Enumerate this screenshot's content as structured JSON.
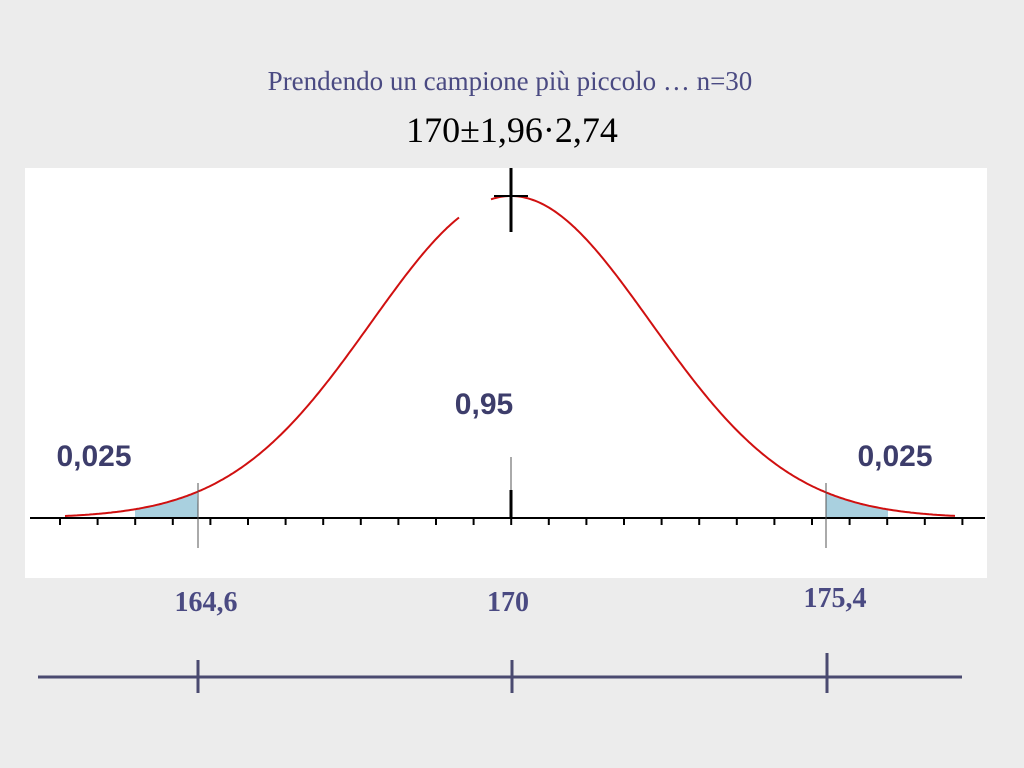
{
  "title": "Prendendo un campione più piccolo … n=30",
  "formula": "170±1,96·2,74",
  "area_labels": {
    "left": "0,025",
    "center": "0,95",
    "right": "0,025"
  },
  "interval_labels": {
    "left": "164,6",
    "center": "170",
    "right": "175,4"
  }
}
